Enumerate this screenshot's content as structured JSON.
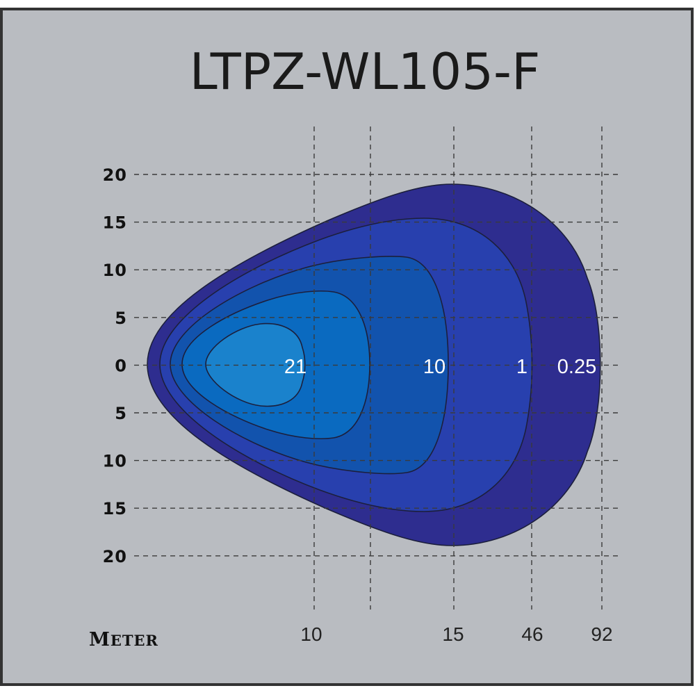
{
  "chart_data": {
    "type": "heatmap",
    "title": "LTPZ-WL105-F",
    "xlabel": "Meter",
    "x_ticks": [
      "10",
      "15",
      "46",
      "92"
    ],
    "y_ticks": [
      "20",
      "15",
      "10",
      "5",
      "0",
      "5",
      "10",
      "15",
      "20"
    ],
    "ylim": [
      -20,
      20
    ],
    "grid": true,
    "contour_levels": [
      {
        "label": "0.25",
        "color": "#2e2d8f"
      },
      {
        "label": "1",
        "color": "#2940a2"
      },
      {
        "label": "10",
        "color": "#1253ad"
      },
      {
        "label": "21",
        "color": "#1a82cc"
      }
    ],
    "extra_band_colors": [
      "#2840ae",
      "#0a6ac0"
    ],
    "frame_color": "#b9bcc1"
  }
}
